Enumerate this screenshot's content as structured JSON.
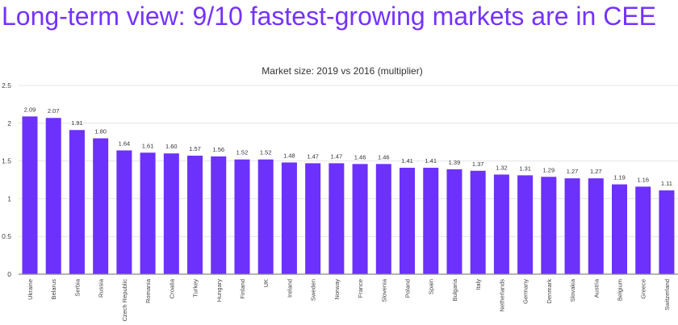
{
  "headline": "Long-term view: 9/10 fastest-growing markets are in CEE",
  "colors": {
    "bar": "#6c31fa",
    "headline": "#7433ff",
    "grid": "#e4e4e4"
  },
  "chart_data": {
    "type": "bar",
    "title": "Market size: 2019 vs 2016 (multiplier)",
    "xlabel": "",
    "ylabel": "",
    "ylim": [
      0,
      2.5
    ],
    "yticks": [
      "0",
      "0.5",
      "1",
      "1.5",
      "2",
      "2.5"
    ],
    "grid": true,
    "categories": [
      "Ukraine",
      "Belarus",
      "Serbia",
      "Russia",
      "Czech Republic",
      "Romania",
      "Croatia",
      "Turkey",
      "Hungary",
      "Finland",
      "UK",
      "Ireland",
      "Sweden",
      "Norway",
      "France",
      "Slovenia",
      "Poland",
      "Spain",
      "Bulgaria",
      "Italy",
      "Netherlands",
      "Germany",
      "Denmark",
      "Slovakia",
      "Austria",
      "Belgium",
      "Greece",
      "Switzerland"
    ],
    "values": [
      2.09,
      2.07,
      1.91,
      1.8,
      1.64,
      1.61,
      1.6,
      1.57,
      1.56,
      1.52,
      1.52,
      1.48,
      1.47,
      1.47,
      1.46,
      1.46,
      1.41,
      1.41,
      1.39,
      1.37,
      1.32,
      1.31,
      1.29,
      1.27,
      1.27,
      1.19,
      1.16,
      1.11
    ],
    "value_labels": [
      "2.09",
      "2.07",
      "1.91",
      "1.80",
      "1.64",
      "1.61",
      "1.60",
      "1.57",
      "1.56",
      "1.52",
      "1.52",
      "1.48",
      "1.47",
      "1.47",
      "1.46",
      "1.46",
      "1.41",
      "1.41",
      "1.39",
      "1.37",
      "1.32",
      "1.31",
      "1.29",
      "1.27",
      "1.27",
      "1.19",
      "1.16",
      "1.11"
    ]
  }
}
